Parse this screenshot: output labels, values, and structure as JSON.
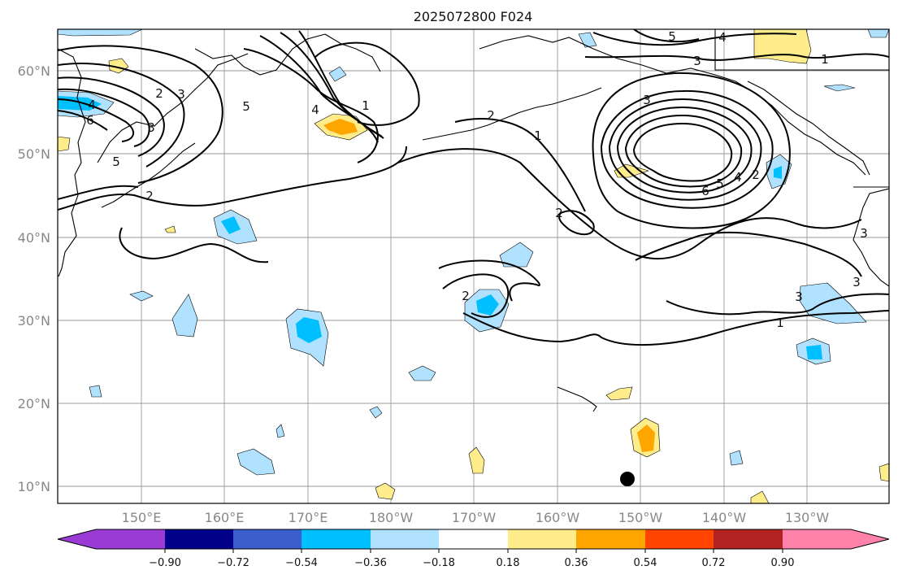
{
  "title": "2025072800 F024",
  "lat_ticks": [
    "60°N",
    "50°N",
    "40°N",
    "30°N",
    "20°N",
    "10°N"
  ],
  "lon_ticks": [
    "150°E",
    "160°E",
    "170°E",
    "180°W",
    "170°W",
    "160°W",
    "150°W",
    "140°W",
    "130°W"
  ],
  "colorbar": {
    "colors": [
      "#9a3bd6",
      "#00008b",
      "#3a5fcd",
      "#00bfff",
      "#b0e2ff",
      "#ffffff",
      "#ffec8b",
      "#ffa500",
      "#ff4500",
      "#b22222",
      "#ff82ab"
    ],
    "tick_labels": [
      "−0.90",
      "−0.72",
      "−0.54",
      "−0.36",
      "−0.18",
      "0.18",
      "0.36",
      "0.54",
      "0.72",
      "0.90"
    ]
  },
  "contour_labels": [
    "5",
    "4",
    "3",
    "2",
    "1",
    "6",
    "5",
    "4",
    "3",
    "2",
    "1",
    "2",
    "1",
    "3",
    "5",
    "4",
    "3",
    "6",
    "5",
    "4",
    "2",
    "2",
    "2",
    "3",
    "3",
    "3",
    "1"
  ],
  "marker": "black-dot"
}
